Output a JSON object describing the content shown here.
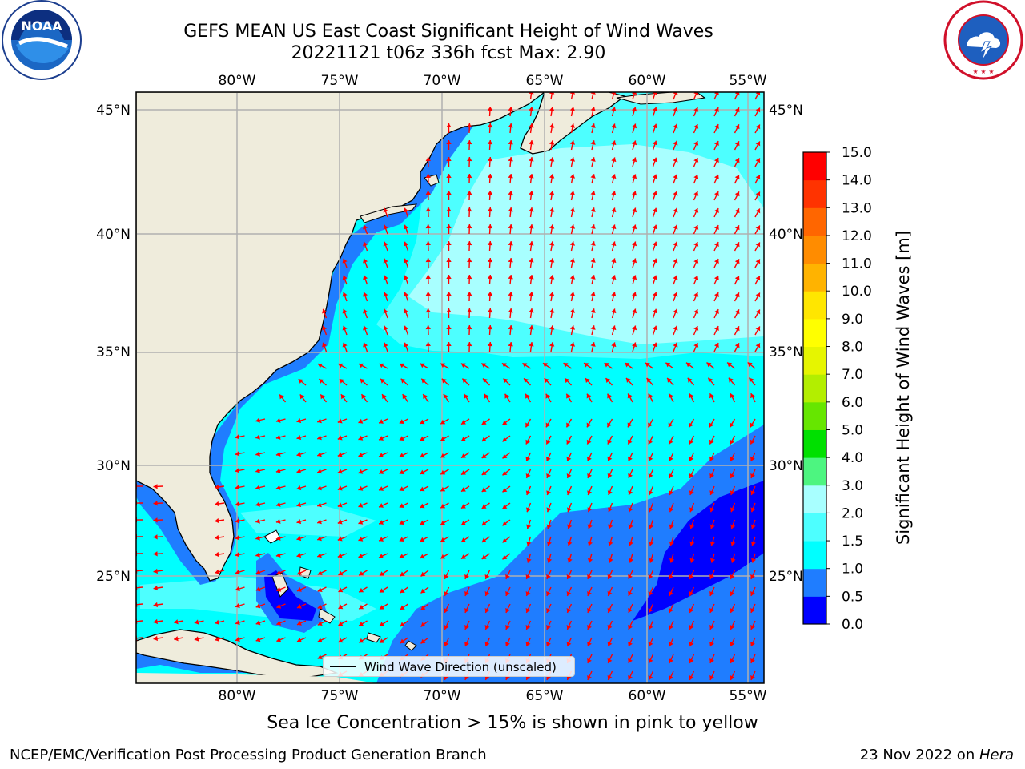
{
  "title": {
    "line1": "GEFS MEAN US East Coast Significant Height of Wind Waves",
    "line2": "20221121 t06z 336h fcst   Max: 2.90"
  },
  "logos": {
    "left": {
      "name": "noaa-logo",
      "text": "NOAA"
    },
    "right": {
      "name": "nws-logo",
      "text": "NATIONAL WEATHER SERVICE"
    }
  },
  "map": {
    "lon_labels": [
      "80°W",
      "75°W",
      "70°W",
      "65°W",
      "60°W",
      "55°W"
    ],
    "lat_labels": [
      "45°N",
      "40°N",
      "35°N",
      "30°N",
      "25°N"
    ],
    "legend_text": "Wind Wave Direction (unscaled)"
  },
  "colorbar": {
    "label": "Significant Height of Wind Waves [m]",
    "ticks": [
      "0.0",
      "0.5",
      "1.0",
      "1.5",
      "2.0",
      "3.0",
      "4.0",
      "5.0",
      "6.0",
      "7.0",
      "8.0",
      "9.0",
      "10.0",
      "11.0",
      "12.0",
      "13.0",
      "14.0",
      "15.0"
    ],
    "colors": [
      "#0000ff",
      "#1f7dff",
      "#00ffff",
      "#4dffff",
      "#a8ffff",
      "#4df580",
      "#00e000",
      "#66e600",
      "#b3ee00",
      "#e6f500",
      "#ffff00",
      "#ffe600",
      "#ffb300",
      "#ff8c00",
      "#ff6600",
      "#ff3300",
      "#ff0000"
    ]
  },
  "subnote": "Sea Ice Concentration > 15% is shown in pink to yellow",
  "footer": {
    "left": "NCEP/EMC/Verification Post Processing Product Generation Branch",
    "right_prefix": "23 Nov 2022 on ",
    "right_machine": "Hera"
  },
  "colors": {
    "land": "#efecdc",
    "grid": "#b0b0b0",
    "arrow": "#ff0000"
  }
}
